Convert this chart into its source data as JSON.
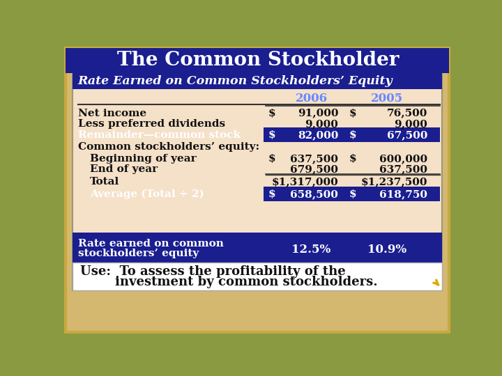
{
  "title": "The Common Stockholder",
  "subtitle": "Rate Earned on Common Stockholders’ Equity",
  "year1": "2006",
  "year2": "2005",
  "rows": [
    {
      "label": "Net income",
      "indent": 0,
      "sym1": "$",
      "val1": "91,000",
      "sym2": "$",
      "val2": "76,500",
      "highlight": false,
      "line_above": true
    },
    {
      "label": "Less preferred dividends",
      "indent": 0,
      "sym1": "",
      "val1": "9,000",
      "sym2": "",
      "val2": "9,000",
      "highlight": false,
      "line_above": false
    },
    {
      "label": "Remainder—common stock",
      "indent": 0,
      "sym1": "$",
      "val1": "82,000",
      "sym2": "$",
      "val2": "67,500",
      "highlight": true,
      "line_above": false
    },
    {
      "label": "Common stockholders’ equity:",
      "indent": 0,
      "sym1": "",
      "val1": "",
      "sym2": "",
      "val2": "",
      "highlight": false,
      "line_above": false
    },
    {
      "label": "Beginning of year",
      "indent": 1,
      "sym1": "$",
      "val1": "637,500",
      "sym2": "$",
      "val2": "600,000",
      "highlight": false,
      "line_above": false
    },
    {
      "label": "End of year",
      "indent": 1,
      "sym1": "",
      "val1": "679,500",
      "sym2": "",
      "val2": "637,500",
      "highlight": false,
      "line_above": false
    },
    {
      "label": "Total",
      "indent": 1,
      "sym1": "",
      "val1": "$1,317,000",
      "sym2": "",
      "val2": "$1,237,500",
      "highlight": false,
      "line_above": true
    },
    {
      "label": "Average (Total ÷ 2)",
      "indent": 1,
      "sym1": "$",
      "val1": "658,500",
      "sym2": "$",
      "val2": "618,750",
      "highlight": true,
      "line_above": false
    }
  ],
  "footer_label1": "Rate earned on common",
  "footer_label2": "stockholders’ equity",
  "footer_val1": "12.5%",
  "footer_val2": "10.9%",
  "use_line1": "Use:  To assess the profitability of the",
  "use_line2": "        investment by common stockholders.",
  "title_bg": "#1a1e8f",
  "subtitle_bg": "#1a1e8f",
  "content_bg": "#f5e0c8",
  "highlight_bg": "#1a1e8f",
  "footer_bg": "#1a1e8f",
  "use_bg": "#ffffff",
  "outer_frame_color": "#c8a840",
  "outer_bg": "#8a9a40",
  "header_year_color": "#6688ff",
  "text_dark": "#111111",
  "text_white": "#ffffff"
}
